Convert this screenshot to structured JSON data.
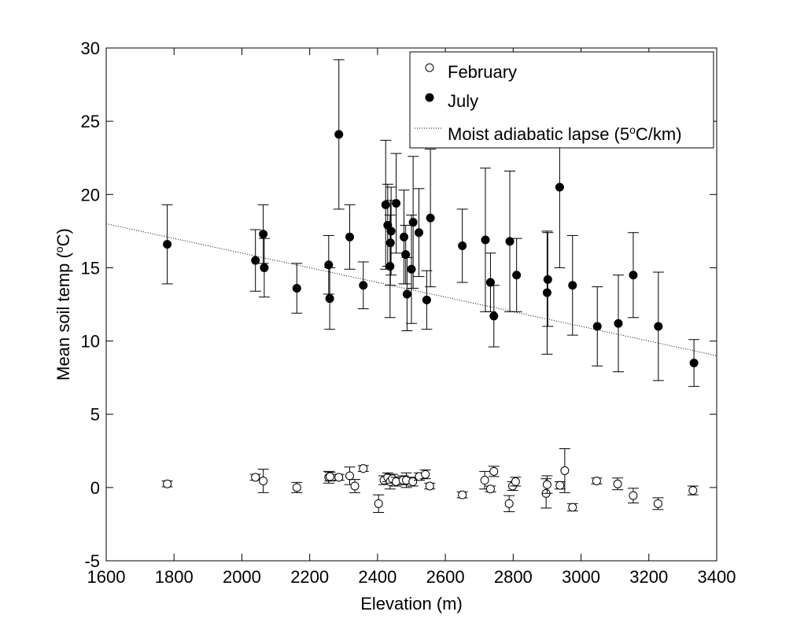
{
  "chart_data": {
    "type": "scatter",
    "xlabel": "Elevation (m)",
    "ylabel_prefix": "Mean soil temp (",
    "ylabel_sup": "o",
    "ylabel_suffix": "C)",
    "xlim": [
      1600,
      3400
    ],
    "ylim": [
      -5,
      30
    ],
    "x_ticks": [
      1600,
      1800,
      2000,
      2200,
      2400,
      2600,
      2800,
      3000,
      3200,
      3400
    ],
    "y_ticks": [
      -5,
      0,
      5,
      10,
      15,
      20,
      25,
      30
    ],
    "grid": false,
    "legend_position": "top-right",
    "legend": {
      "february": "February",
      "july": "July",
      "lapse_prefix": "Moist adiabatic lapse (5",
      "lapse_sup": "o",
      "lapse_suffix": "C/km)"
    },
    "series": [
      {
        "name": "February",
        "marker": "open-circle",
        "points": [
          {
            "x": 1780,
            "y": 0.25,
            "err": 0.2
          },
          {
            "x": 2040,
            "y": 0.7,
            "err": 0.2
          },
          {
            "x": 2063,
            "y": 0.45,
            "err": 0.8
          },
          {
            "x": 2162,
            "y": 0.0,
            "err": 0.35
          },
          {
            "x": 2256,
            "y": 0.7,
            "err": 0.4
          },
          {
            "x": 2260,
            "y": 0.75,
            "err": 0.3
          },
          {
            "x": 2286,
            "y": 0.7,
            "err": 0.2
          },
          {
            "x": 2318,
            "y": 0.8,
            "err": 0.6
          },
          {
            "x": 2333,
            "y": 0.1,
            "err": 0.45
          },
          {
            "x": 2358,
            "y": 1.3,
            "err": 0.2
          },
          {
            "x": 2403,
            "y": -1.1,
            "err": 0.6
          },
          {
            "x": 2419,
            "y": 0.5,
            "err": 0.3
          },
          {
            "x": 2430,
            "y": 0.7,
            "err": 0.3
          },
          {
            "x": 2437,
            "y": 0.4,
            "err": 0.5
          },
          {
            "x": 2444,
            "y": 0.6,
            "err": 0.3
          },
          {
            "x": 2455,
            "y": 0.4,
            "err": 0.3
          },
          {
            "x": 2475,
            "y": 0.5,
            "err": 0.3
          },
          {
            "x": 2485,
            "y": 0.5,
            "err": 0.5
          },
          {
            "x": 2504,
            "y": 0.4,
            "err": 0.3
          },
          {
            "x": 2523,
            "y": 0.75,
            "err": 0.25
          },
          {
            "x": 2541,
            "y": 0.9,
            "err": 0.3
          },
          {
            "x": 2554,
            "y": 0.1,
            "err": 0.2
          },
          {
            "x": 2650,
            "y": -0.5,
            "err": 0.2
          },
          {
            "x": 2716,
            "y": 0.5,
            "err": 0.6
          },
          {
            "x": 2733,
            "y": -0.1,
            "err": 0.2
          },
          {
            "x": 2743,
            "y": 1.1,
            "err": 0.35
          },
          {
            "x": 2788,
            "y": -1.1,
            "err": 0.55
          },
          {
            "x": 2798,
            "y": 0.1,
            "err": 0.3
          },
          {
            "x": 2807,
            "y": 0.4,
            "err": 0.3
          },
          {
            "x": 2897,
            "y": -0.4,
            "err": 1.0
          },
          {
            "x": 2900,
            "y": 0.2,
            "err": 0.6
          },
          {
            "x": 2938,
            "y": 0.15,
            "err": 0.25
          },
          {
            "x": 2952,
            "y": 1.15,
            "err": 1.5
          },
          {
            "x": 2975,
            "y": -1.35,
            "err": 0.25
          },
          {
            "x": 3046,
            "y": 0.45,
            "err": 0.2
          },
          {
            "x": 3108,
            "y": 0.25,
            "err": 0.4
          },
          {
            "x": 3154,
            "y": -0.55,
            "err": 0.5
          },
          {
            "x": 3227,
            "y": -1.1,
            "err": 0.4
          },
          {
            "x": 3330,
            "y": -0.2,
            "err": 0.3
          }
        ]
      },
      {
        "name": "July",
        "marker": "filled-circle",
        "points": [
          {
            "x": 1780,
            "y": 16.6,
            "err": 2.7
          },
          {
            "x": 2040,
            "y": 15.5,
            "err": 2.1
          },
          {
            "x": 2063,
            "y": 17.3,
            "err": 2.0
          },
          {
            "x": 2066,
            "y": 15.0,
            "err": 2.0
          },
          {
            "x": 2162,
            "y": 13.6,
            "err": 1.7
          },
          {
            "x": 2256,
            "y": 15.2,
            "err": 2.0
          },
          {
            "x": 2259,
            "y": 12.9,
            "err": 2.1
          },
          {
            "x": 2286,
            "y": 24.1,
            "err": 5.1
          },
          {
            "x": 2318,
            "y": 17.1,
            "err": 2.2
          },
          {
            "x": 2358,
            "y": 13.8,
            "err": 1.6
          },
          {
            "x": 2424,
            "y": 19.3,
            "err": 4.4
          },
          {
            "x": 2430,
            "y": 17.9,
            "err": 2.8
          },
          {
            "x": 2437,
            "y": 15.1,
            "err": 3.5
          },
          {
            "x": 2438,
            "y": 16.7,
            "err": 2.9
          },
          {
            "x": 2440,
            "y": 17.5,
            "err": 3.0
          },
          {
            "x": 2455,
            "y": 19.4,
            "err": 3.4
          },
          {
            "x": 2478,
            "y": 17.1,
            "err": 3.2
          },
          {
            "x": 2483,
            "y": 15.9,
            "err": 2.0
          },
          {
            "x": 2487,
            "y": 13.2,
            "err": 2.5
          },
          {
            "x": 2500,
            "y": 14.9,
            "err": 3.7
          },
          {
            "x": 2505,
            "y": 18.1,
            "err": 4.5
          },
          {
            "x": 2522,
            "y": 17.4,
            "err": 3.0
          },
          {
            "x": 2545,
            "y": 12.8,
            "err": 2.0
          },
          {
            "x": 2556,
            "y": 18.4,
            "err": 4.7
          },
          {
            "x": 2650,
            "y": 16.5,
            "err": 2.5
          },
          {
            "x": 2718,
            "y": 16.9,
            "err": 4.9
          },
          {
            "x": 2733,
            "y": 14.0,
            "err": 2.0
          },
          {
            "x": 2743,
            "y": 11.7,
            "err": 2.1
          },
          {
            "x": 2790,
            "y": 16.8,
            "err": 4.8
          },
          {
            "x": 2810,
            "y": 14.5,
            "err": 2.5
          },
          {
            "x": 2900,
            "y": 13.3,
            "err": 4.2
          },
          {
            "x": 2902,
            "y": 14.2,
            "err": 3.2
          },
          {
            "x": 2937,
            "y": 20.5,
            "err": 5.5
          },
          {
            "x": 2975,
            "y": 13.8,
            "err": 3.4
          },
          {
            "x": 3048,
            "y": 11.0,
            "err": 2.7
          },
          {
            "x": 3110,
            "y": 11.2,
            "err": 3.3
          },
          {
            "x": 3154,
            "y": 14.5,
            "err": 2.9
          },
          {
            "x": 3228,
            "y": 11.0,
            "err": 3.7
          },
          {
            "x": 3333,
            "y": 8.5,
            "err": 1.6
          }
        ]
      },
      {
        "name": "Moist adiabatic lapse (5oC/km)",
        "style": "dotted-line",
        "x": [
          1600,
          3400
        ],
        "y": [
          18.0,
          9.0
        ]
      }
    ]
  }
}
